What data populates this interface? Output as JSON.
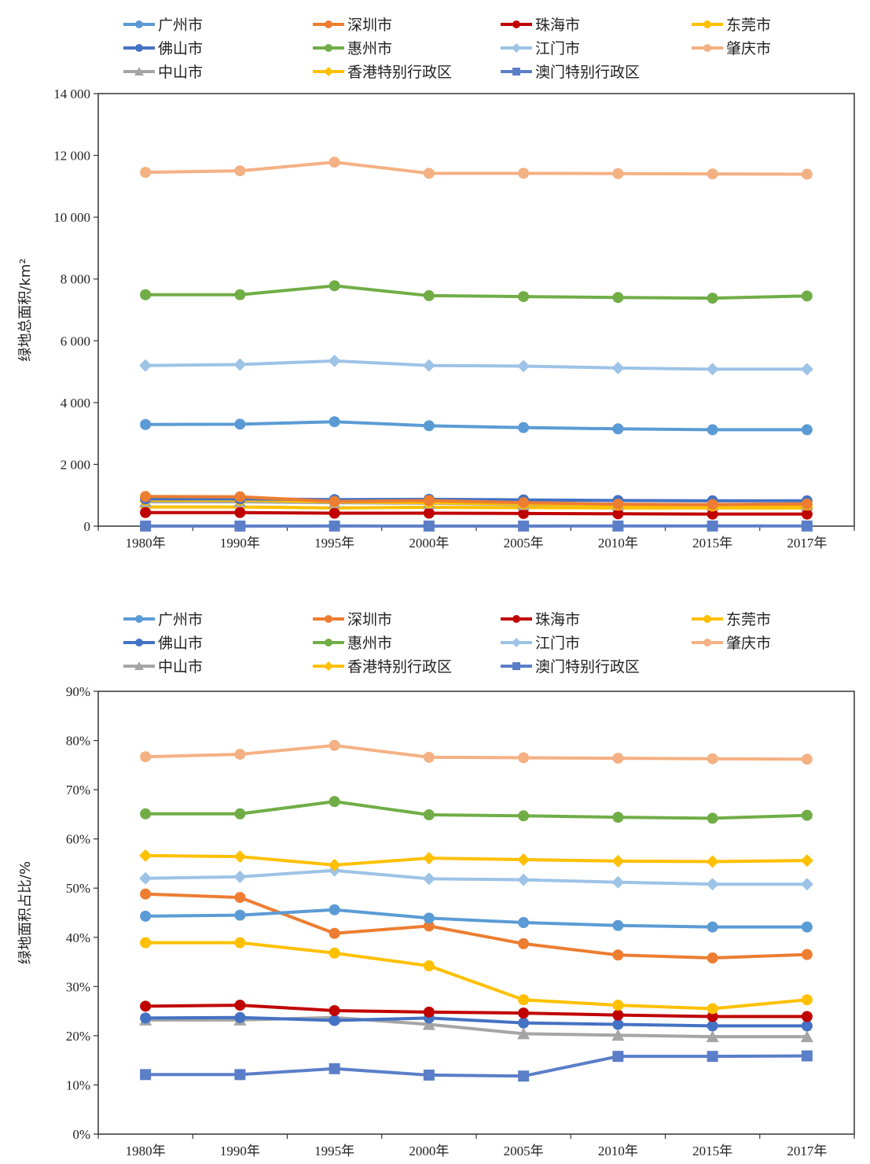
{
  "colors": {
    "广州市": "#5b9bd5",
    "深圳市": "#ed7d31",
    "珠海市": "#c00000",
    "东莞市": "#ffc000",
    "佛山市": "#4472c4",
    "惠州市": "#70ad47",
    "江门市": "#9dc3e6",
    "肇庆市": "#f4b183",
    "中山市": "#a5a5a5",
    "香港特别行政区": "#ffc000",
    "澳门特别行政区": "#5b7ec8"
  },
  "legend": [
    {
      "name": "广州市",
      "marker": "circle"
    },
    {
      "name": "深圳市",
      "marker": "circle"
    },
    {
      "name": "珠海市",
      "marker": "circle"
    },
    {
      "name": "东莞市",
      "marker": "circle"
    },
    {
      "name": "佛山市",
      "marker": "circle"
    },
    {
      "name": "惠州市",
      "marker": "circle"
    },
    {
      "name": "江门市",
      "marker": "diamond"
    },
    {
      "name": "肇庆市",
      "marker": "circle"
    },
    {
      "name": "中山市",
      "marker": "triangle"
    },
    {
      "name": "香港特别行政区",
      "marker": "diamond"
    },
    {
      "name": "澳门特别行政区",
      "marker": "square"
    }
  ],
  "chart_data": [
    {
      "type": "line",
      "title": "",
      "xlabel": "",
      "ylabel": "绿地总面积/km²",
      "ylim": [
        0,
        14000
      ],
      "yticks": [
        0,
        2000,
        4000,
        6000,
        8000,
        10000,
        12000,
        14000
      ],
      "ytick_labels": [
        "0",
        "2 000",
        "4 000",
        "6 000",
        "8 000",
        "10 000",
        "12 000",
        "14 000"
      ],
      "categories": [
        "1980年",
        "1990年",
        "1995年",
        "2000年",
        "2005年",
        "2010年",
        "2015年",
        "2017年"
      ],
      "grid": false,
      "legend_position": "top",
      "series": [
        {
          "name": "肇庆市",
          "values": [
            11450,
            11500,
            11780,
            11420,
            11420,
            11410,
            11400,
            11390
          ]
        },
        {
          "name": "惠州市",
          "values": [
            7490,
            7490,
            7780,
            7460,
            7430,
            7400,
            7380,
            7450
          ]
        },
        {
          "name": "江门市",
          "values": [
            5200,
            5230,
            5350,
            5200,
            5180,
            5120,
            5080,
            5080
          ]
        },
        {
          "name": "广州市",
          "values": [
            3290,
            3300,
            3380,
            3250,
            3190,
            3150,
            3120,
            3120
          ]
        },
        {
          "name": "深圳市",
          "values": [
            960,
            950,
            800,
            830,
            760,
            710,
            700,
            720
          ]
        },
        {
          "name": "佛山市",
          "values": [
            880,
            880,
            860,
            870,
            850,
            830,
            820,
            820
          ]
        },
        {
          "name": "东莞市",
          "values": [
            840,
            840,
            790,
            760,
            720,
            680,
            650,
            690
          ]
        },
        {
          "name": "中山市",
          "values": [
            790,
            790,
            760,
            740,
            700,
            690,
            680,
            690
          ]
        },
        {
          "name": "珠海市",
          "values": [
            440,
            440,
            420,
            420,
            410,
            400,
            390,
            390
          ]
        },
        {
          "name": "香港特别行政区",
          "values": [
            620,
            620,
            590,
            610,
            600,
            590,
            590,
            590
          ]
        },
        {
          "name": "澳门特别行政区",
          "values": [
            4,
            4,
            5,
            4,
            4,
            5,
            5,
            5
          ]
        }
      ]
    },
    {
      "type": "line",
      "title": "",
      "xlabel": "",
      "ylabel": "绿地面积占比/%",
      "ylim": [
        0,
        90
      ],
      "yticks": [
        0,
        10,
        20,
        30,
        40,
        50,
        60,
        70,
        80,
        90
      ],
      "ytick_labels": [
        "0%",
        "10%",
        "20%",
        "30%",
        "40%",
        "50%",
        "60%",
        "70%",
        "80%",
        "90%"
      ],
      "categories": [
        "1980年",
        "1990年",
        "1995年",
        "2000年",
        "2005年",
        "2010年",
        "2015年",
        "2017年"
      ],
      "grid": false,
      "legend_position": "top",
      "series": [
        {
          "name": "肇庆市",
          "values": [
            76.7,
            77.2,
            79.0,
            76.6,
            76.5,
            76.4,
            76.3,
            76.2
          ]
        },
        {
          "name": "惠州市",
          "values": [
            65.1,
            65.1,
            67.6,
            64.9,
            64.7,
            64.4,
            64.2,
            64.8
          ]
        },
        {
          "name": "香港特别行政区",
          "values": [
            56.6,
            56.4,
            54.7,
            56.1,
            55.8,
            55.5,
            55.4,
            55.6
          ]
        },
        {
          "name": "江门市",
          "values": [
            52.0,
            52.3,
            53.6,
            51.9,
            51.7,
            51.2,
            50.8,
            50.8
          ]
        },
        {
          "name": "广州市",
          "values": [
            44.3,
            44.5,
            45.6,
            43.9,
            43.0,
            42.4,
            42.1,
            42.1
          ]
        },
        {
          "name": "深圳市",
          "values": [
            48.8,
            48.1,
            40.8,
            42.3,
            38.7,
            36.4,
            35.8,
            36.5
          ]
        },
        {
          "name": "东莞市",
          "values": [
            38.9,
            38.9,
            36.8,
            34.2,
            27.3,
            26.2,
            25.5,
            27.3
          ]
        },
        {
          "name": "珠海市",
          "values": [
            26.0,
            26.2,
            25.1,
            24.8,
            24.6,
            24.2,
            23.9,
            23.9
          ]
        },
        {
          "name": "佛山市",
          "values": [
            23.6,
            23.7,
            23.1,
            23.6,
            22.6,
            22.3,
            22.0,
            22.0
          ]
        },
        {
          "name": "中山市",
          "values": [
            23.2,
            23.2,
            23.7,
            22.3,
            20.4,
            20.1,
            19.8,
            19.8
          ]
        },
        {
          "name": "澳门特别行政区",
          "values": [
            12.1,
            12.1,
            13.3,
            12.0,
            11.8,
            15.8,
            15.8,
            15.9
          ]
        }
      ]
    }
  ]
}
